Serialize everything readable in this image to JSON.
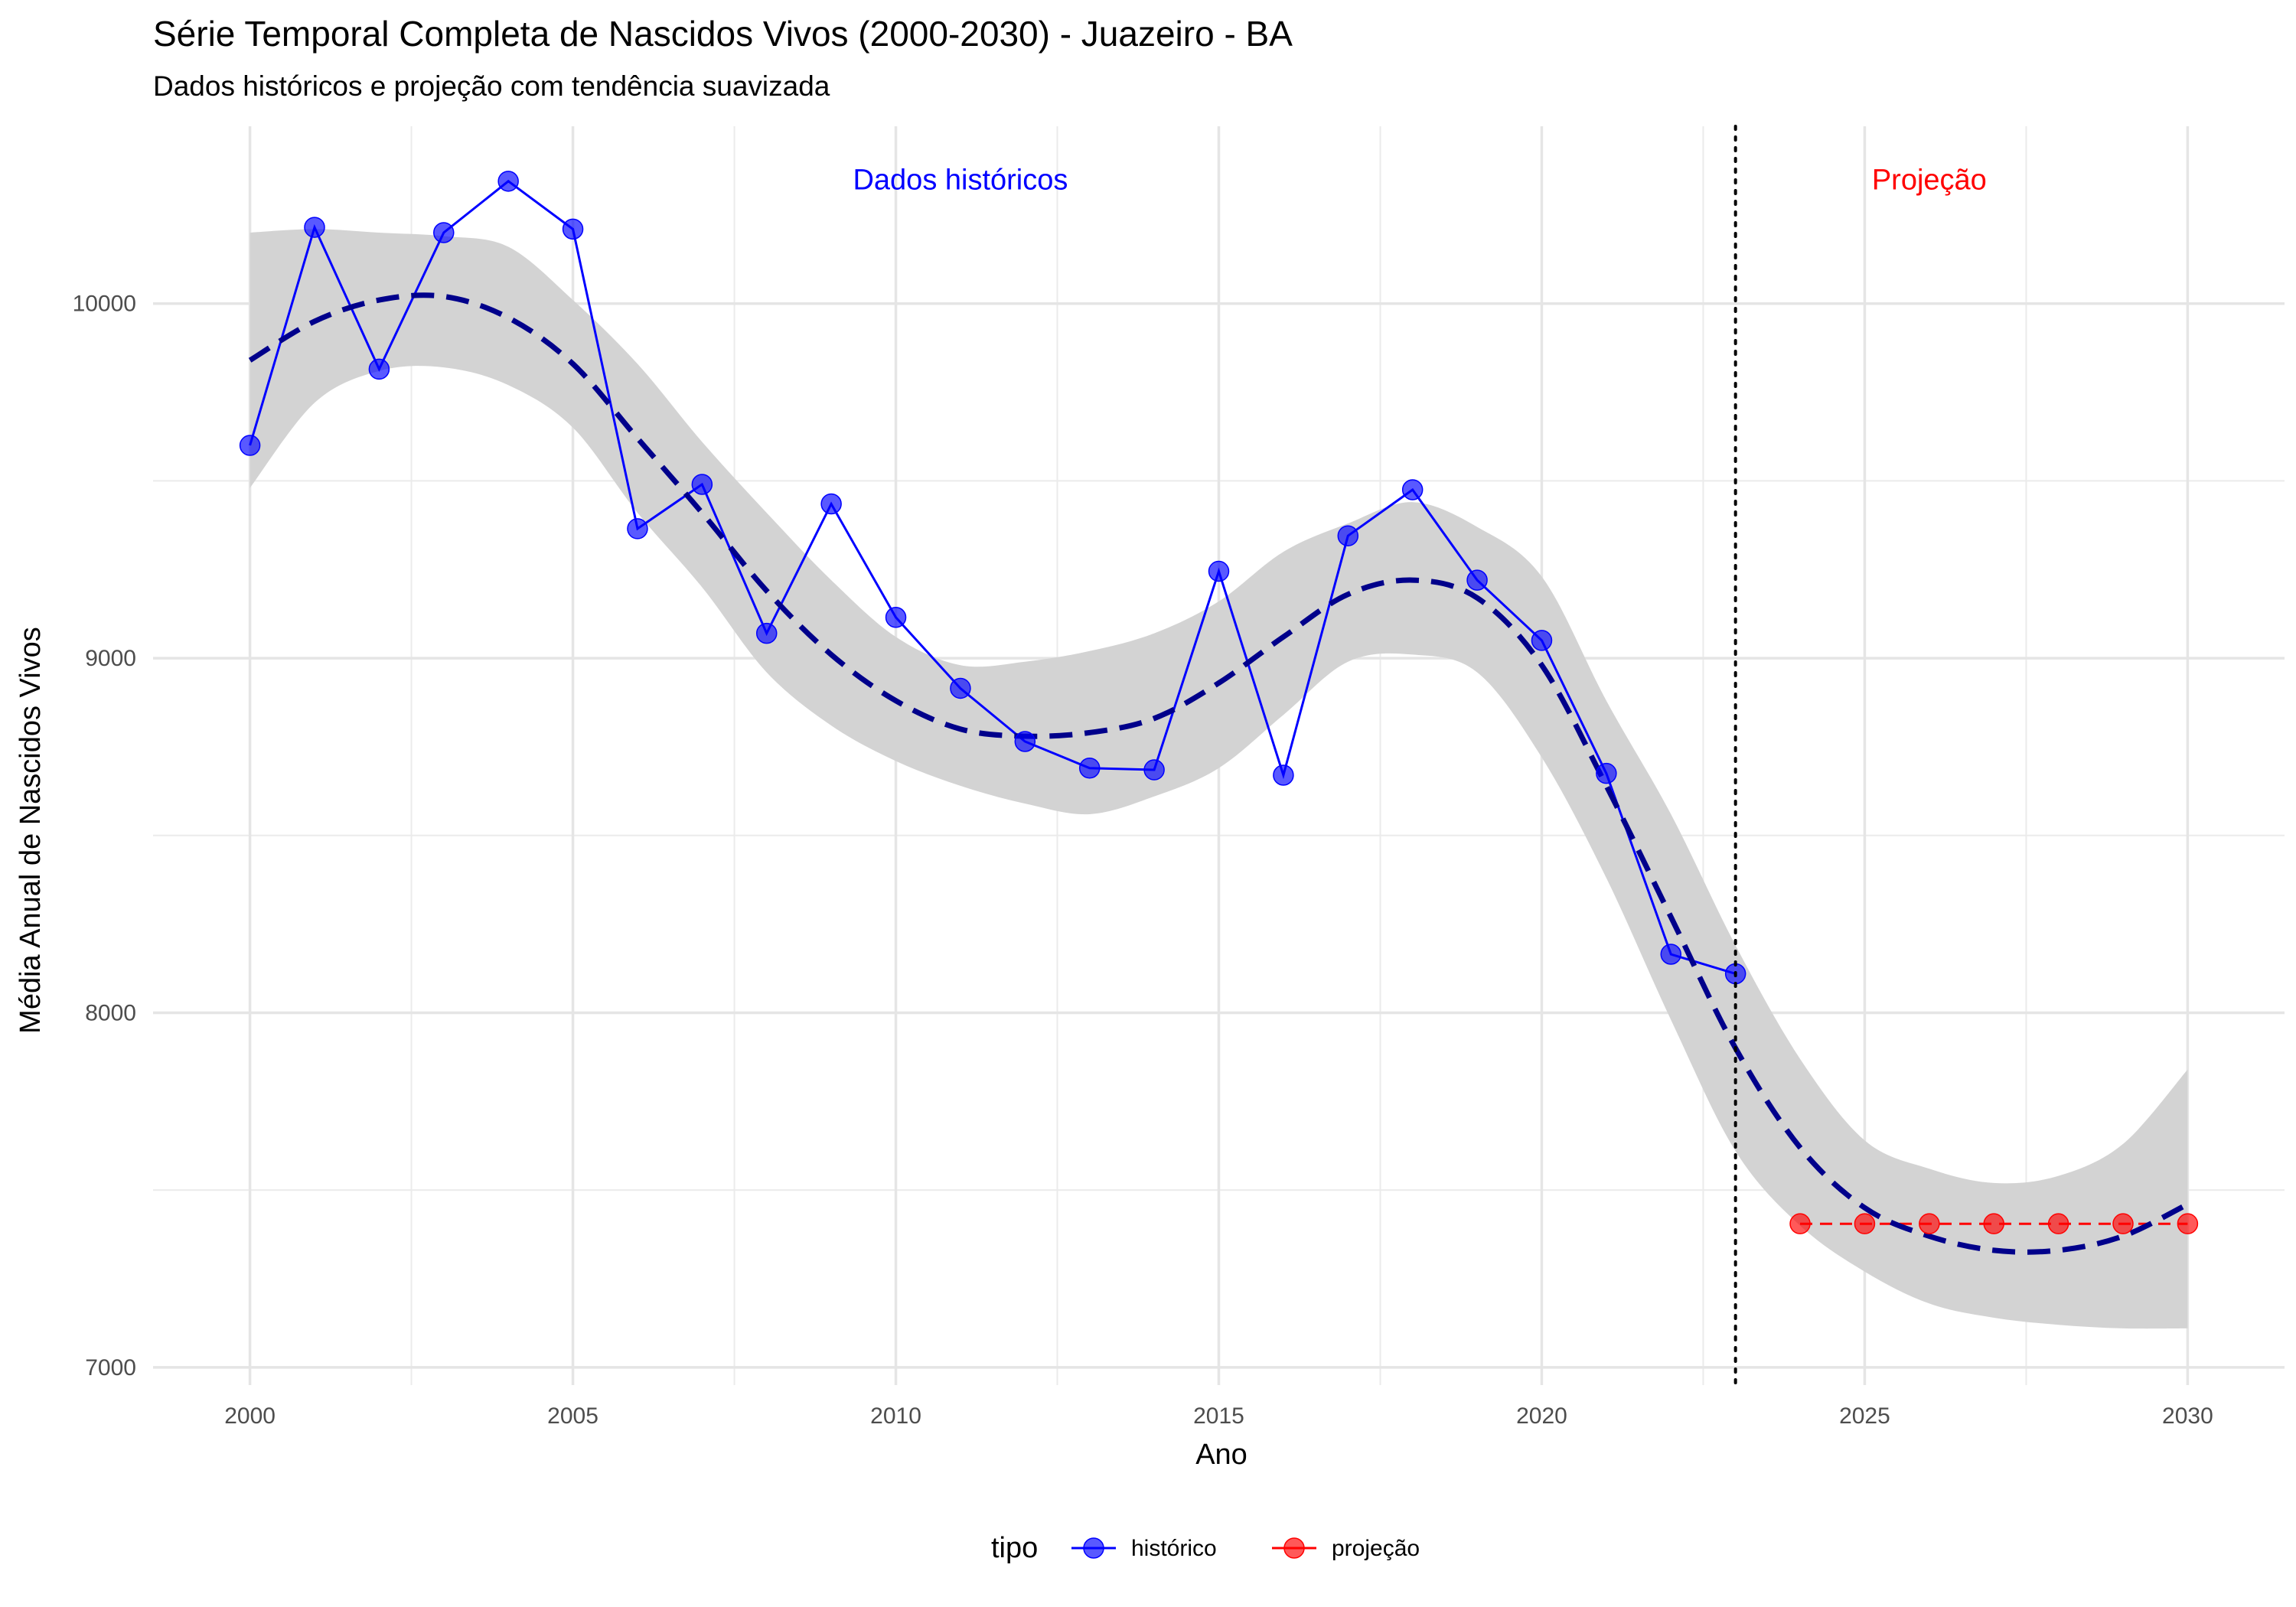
{
  "chart_data": {
    "type": "line",
    "title": "Série Temporal Completa de Nascidos Vivos (2000-2030) -  Juazeiro - BA",
    "subtitle": "Dados históricos e projeção com tendência suavizada",
    "xlabel": "Ano",
    "ylabel": "Média Anual de Nascidos Vivos",
    "xlim": [
      1998.5,
      2031.5
    ],
    "ylim": [
      6950,
      10500
    ],
    "x_ticks": [
      2000,
      2005,
      2010,
      2015,
      2020,
      2025,
      2030
    ],
    "y_ticks": [
      7000,
      8000,
      9000,
      10000
    ],
    "grid": true,
    "legend": {
      "title": "tipo",
      "position": "bottom",
      "entries": [
        {
          "label": "histórico",
          "color": "#0000ff"
        },
        {
          "label": "projeção",
          "color": "#ff0000"
        }
      ]
    },
    "series": [
      {
        "name": "histórico",
        "color": "#0000ff",
        "x": [
          2000,
          2001,
          2002,
          2003,
          2004,
          2005,
          2006,
          2007,
          2008,
          2009,
          2010,
          2011,
          2012,
          2013,
          2014,
          2015,
          2016,
          2017,
          2018,
          2019,
          2020,
          2021,
          2022,
          2023
        ],
        "y": [
          9600,
          10215,
          9815,
          10200,
          10345,
          10210,
          9365,
          9490,
          9070,
          9435,
          9115,
          8915,
          8765,
          8690,
          8685,
          9245,
          8670,
          9345,
          9475,
          9220,
          9050,
          8675,
          8165,
          8110
        ]
      },
      {
        "name": "projeção",
        "color": "#ff0000",
        "x": [
          2024,
          2025,
          2026,
          2027,
          2028,
          2029,
          2030
        ],
        "y": [
          7405,
          7405,
          7405,
          7405,
          7405,
          7405,
          7405
        ]
      }
    ],
    "trend": {
      "color": "#00008b",
      "band_color": "#d3d3d3",
      "x": [
        2000,
        2001,
        2002,
        2003,
        2004,
        2005,
        2006,
        2007,
        2008,
        2009,
        2010,
        2011,
        2012,
        2013,
        2014,
        2015,
        2016,
        2017,
        2018,
        2019,
        2020,
        2021,
        2022,
        2023,
        2024,
        2025,
        2026,
        2027,
        2028,
        2029,
        2030
      ],
      "y": [
        9840,
        9950,
        10010,
        10020,
        9960,
        9830,
        9620,
        9410,
        9190,
        9010,
        8880,
        8800,
        8780,
        8790,
        8830,
        8930,
        9060,
        9180,
        9220,
        9170,
        8980,
        8640,
        8270,
        7900,
        7620,
        7450,
        7370,
        7330,
        7330,
        7370,
        7460
      ],
      "lower": [
        9480,
        9720,
        9810,
        9820,
        9770,
        9650,
        9410,
        9200,
        8960,
        8810,
        8710,
        8640,
        8590,
        8560,
        8610,
        8690,
        8840,
        8990,
        9010,
        8960,
        8720,
        8380,
        7980,
        7610,
        7400,
        7270,
        7180,
        7140,
        7120,
        7110,
        7110
      ],
      "upper": [
        10200,
        10210,
        10200,
        10190,
        10160,
        10010,
        9830,
        9610,
        9410,
        9220,
        9060,
        8980,
        8990,
        9020,
        9070,
        9160,
        9300,
        9380,
        9440,
        9370,
        9230,
        8880,
        8560,
        8190,
        7870,
        7640,
        7560,
        7520,
        7540,
        7630,
        7840
      ]
    },
    "vline": {
      "x": 2023,
      "style": "dotted",
      "color": "#000000"
    },
    "annotations": [
      {
        "text": "Dados históricos",
        "x": 2011,
        "y": 10350,
        "color": "#0000ff"
      },
      {
        "text": "Projeção",
        "x": 2026,
        "y": 10350,
        "color": "#ff0000"
      }
    ]
  }
}
